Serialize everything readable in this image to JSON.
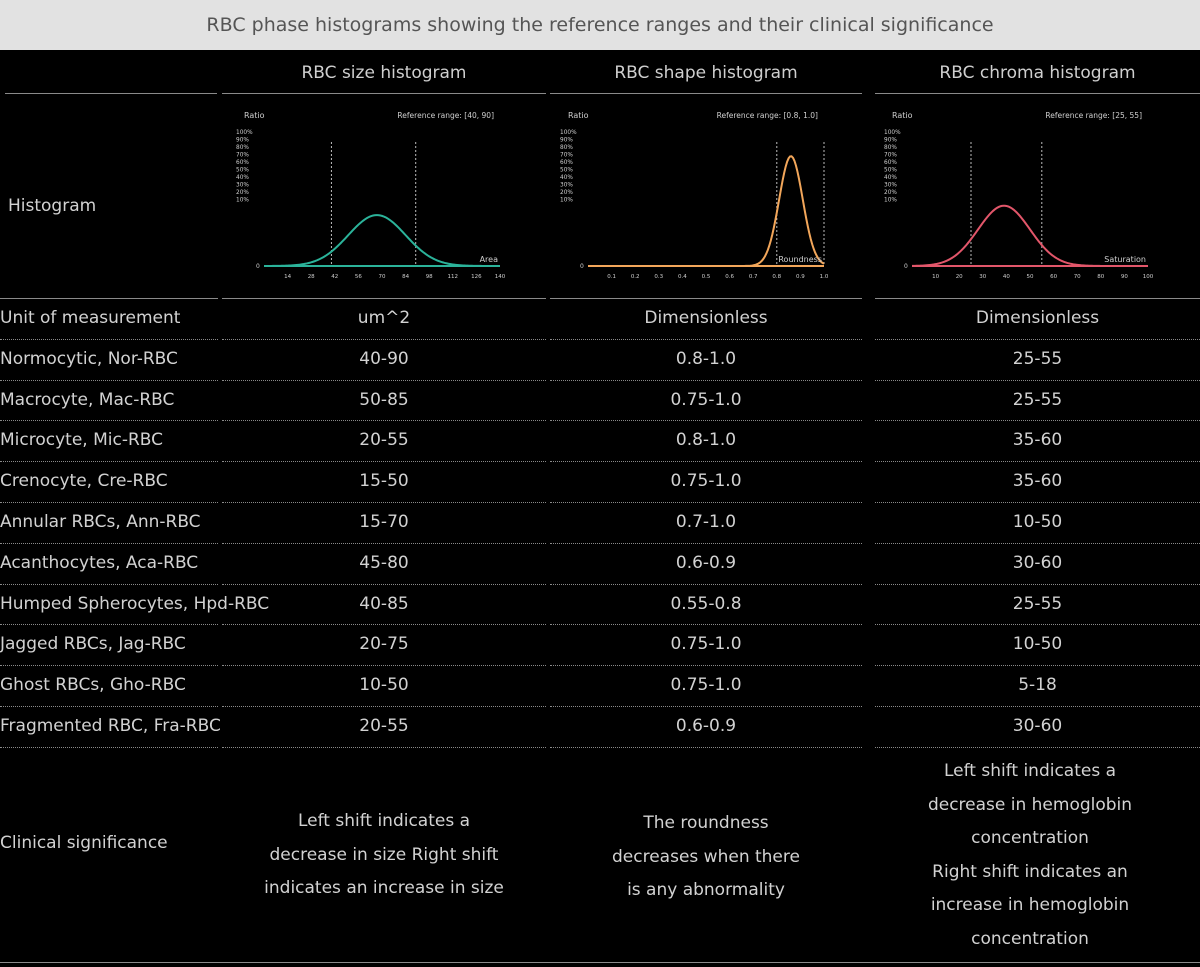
{
  "title": "RBC phase histograms showing the reference ranges and their clinical significance",
  "columns": [
    "RBC size histogram",
    "RBC shape histogram",
    "RBC chroma histogram"
  ],
  "histogram_label": "Histogram",
  "rows": [
    {
      "label": "Unit of measurement",
      "values": [
        "um^2",
        "Dimensionless",
        "Dimensionless"
      ]
    },
    {
      "label": "Normocytic, Nor-RBC",
      "values": [
        "40-90",
        "0.8-1.0",
        "25-55"
      ]
    },
    {
      "label": "Macrocyte, Mac-RBC",
      "values": [
        "50-85",
        "0.75-1.0",
        "25-55"
      ]
    },
    {
      "label": "Microcyte, Mic-RBC",
      "values": [
        "20-55",
        "0.8-1.0",
        "35-60"
      ]
    },
    {
      "label": "Crenocyte, Cre-RBC",
      "values": [
        "15-50",
        "0.75-1.0",
        "35-60"
      ]
    },
    {
      "label": "Annular RBCs, Ann-RBC",
      "values": [
        "15-70",
        "0.7-1.0",
        "10-50"
      ]
    },
    {
      "label": "Acanthocytes, Aca-RBC",
      "values": [
        "45-80",
        "0.6-0.9",
        "30-60"
      ]
    },
    {
      "label": "Humped Spherocytes, Hpd-RBC",
      "values": [
        "40-85",
        "0.55-0.8",
        "25-55"
      ]
    },
    {
      "label": "Jagged RBCs, Jag-RBC",
      "values": [
        "20-75",
        "0.75-1.0",
        "10-50"
      ]
    },
    {
      "label": "Ghost RBCs, Gho-RBC",
      "values": [
        "10-50",
        "0.75-1.0",
        "5-18"
      ]
    },
    {
      "label": "Fragmented RBC, Fra-RBC",
      "values": [
        "20-55",
        "0.6-0.9",
        "30-60"
      ]
    }
  ],
  "clinical": {
    "label": "Clinical significance",
    "size": [
      "Left shift indicates a",
      "decrease in size Right shift",
      "indicates an increase in size"
    ],
    "shape": [
      "The roundness",
      "decreases when there",
      "is any abnormality"
    ],
    "chroma": [
      "Left shift indicates a",
      "decrease in hemoglobin",
      "concentration",
      "Right shift indicates an",
      "increase in hemoglobin",
      "concentration"
    ]
  },
  "chart_data": [
    {
      "type": "area",
      "ylabel": "Ratio",
      "xlabel": "Area",
      "reference_label": "Reference range: [40, 90]",
      "reference_range": [
        40,
        90
      ],
      "y_ticks": [
        "100%",
        "90%",
        "80%",
        "70%",
        "60%",
        "50%",
        "40%",
        "30%",
        "20%",
        "10%",
        "0"
      ],
      "x_ticks": [
        "14",
        "28",
        "42",
        "56",
        "70",
        "84",
        "98",
        "112",
        "126",
        "140"
      ],
      "xlim": [
        0,
        140
      ],
      "ylim": [
        0,
        100
      ],
      "curve": {
        "mean": 67,
        "sd": 17,
        "peak": 38
      },
      "color": "#2bb39a"
    },
    {
      "type": "area",
      "ylabel": "Ratio",
      "xlabel": "Roundness",
      "reference_label": "Reference range: [0.8, 1.0]",
      "reference_range": [
        0.8,
        1.0
      ],
      "y_ticks": [
        "100%",
        "90%",
        "80%",
        "70%",
        "60%",
        "50%",
        "40%",
        "30%",
        "20%",
        "10%",
        "0"
      ],
      "x_ticks": [
        "0.1",
        "0.2",
        "0.3",
        "0.4",
        "0.5",
        "0.6",
        "0.7",
        "0.8",
        "0.9",
        "1.0"
      ],
      "xlim": [
        0,
        1.0
      ],
      "ylim": [
        0,
        100
      ],
      "curve": {
        "mean": 0.86,
        "sd": 0.05,
        "peak": 82
      },
      "color": "#f2a65a"
    },
    {
      "type": "area",
      "ylabel": "Ratio",
      "xlabel": "Saturation",
      "reference_label": "Reference range: [25, 55]",
      "reference_range": [
        25,
        55
      ],
      "y_ticks": [
        "100%",
        "90%",
        "80%",
        "70%",
        "60%",
        "50%",
        "40%",
        "30%",
        "20%",
        "10%",
        "0"
      ],
      "x_ticks": [
        "10",
        "20",
        "30",
        "40",
        "50",
        "60",
        "70",
        "80",
        "90",
        "100"
      ],
      "xlim": [
        0,
        100
      ],
      "ylim": [
        0,
        100
      ],
      "curve": {
        "mean": 39,
        "sd": 11,
        "peak": 45
      },
      "color": "#e2566a"
    }
  ]
}
